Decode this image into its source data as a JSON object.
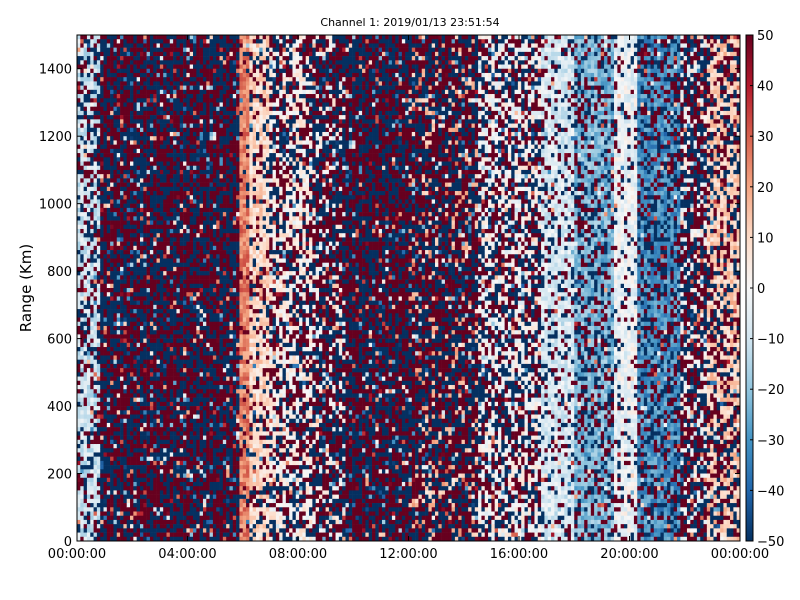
{
  "chart_data": {
    "type": "heatmap",
    "title": "Channel 1: 2019/01/13 23:51:54",
    "xlabel": "",
    "ylabel": "Range (Km)",
    "x_ticks": [
      "00:00:00",
      "04:00:00",
      "08:00:00",
      "12:00:00",
      "16:00:00",
      "20:00:00",
      "00:00:00"
    ],
    "x_tick_hours": [
      0,
      4,
      8,
      12,
      16,
      20,
      24
    ],
    "xlim_hours": [
      0,
      24
    ],
    "y_ticks": [
      0,
      200,
      400,
      600,
      800,
      1000,
      1200,
      1400
    ],
    "ylim": [
      0,
      1500
    ],
    "colorbar": {
      "colormap": "RdBu_r",
      "vmin": -50,
      "vmax": 50,
      "ticks": [
        50,
        40,
        30,
        20,
        10,
        0,
        -10,
        -20,
        -30,
        -40,
        -50
      ],
      "colors": [
        "#053061",
        "#2166ac",
        "#4393c3",
        "#92c5de",
        "#d1e5f0",
        "#f7f7f7",
        "#fddbc7",
        "#f4a582",
        "#d6604d",
        "#b2182b",
        "#67001f"
      ]
    },
    "time_profile": [
      {
        "start_h": 0.0,
        "end_h": 0.8,
        "value": -10,
        "noise": 0.45
      },
      {
        "start_h": 0.8,
        "end_h": 3.0,
        "value": 0,
        "noise": 1.0
      },
      {
        "start_h": 3.0,
        "end_h": 5.9,
        "value": -10,
        "noise": 1.0
      },
      {
        "start_h": 5.9,
        "end_h": 6.3,
        "value": 25,
        "noise": 0.15
      },
      {
        "start_h": 6.3,
        "end_h": 7.0,
        "value": 10,
        "noise": 0.3
      },
      {
        "start_h": 7.0,
        "end_h": 8.5,
        "value": 3,
        "noise": 0.55
      },
      {
        "start_h": 8.5,
        "end_h": 9.7,
        "value": 0,
        "noise": 0.85
      },
      {
        "start_h": 9.7,
        "end_h": 12.0,
        "value": 5,
        "noise": 1.0
      },
      {
        "start_h": 12.0,
        "end_h": 14.5,
        "value": 15,
        "noise": 0.9
      },
      {
        "start_h": 14.5,
        "end_h": 16.8,
        "value": 0,
        "noise": 0.6
      },
      {
        "start_h": 16.8,
        "end_h": 18.0,
        "value": -8,
        "noise": 0.25
      },
      {
        "start_h": 18.0,
        "end_h": 19.5,
        "value": -22,
        "noise": 0.4
      },
      {
        "start_h": 19.5,
        "end_h": 20.3,
        "value": -3,
        "noise": 0.2
      },
      {
        "start_h": 20.3,
        "end_h": 21.8,
        "value": -30,
        "noise": 0.45
      },
      {
        "start_h": 21.8,
        "end_h": 22.8,
        "value": 0,
        "noise": 0.75
      },
      {
        "start_h": 22.8,
        "end_h": 24.0,
        "value": 12,
        "noise": 0.5
      }
    ],
    "grid": false,
    "legend": "colorbar-right"
  }
}
